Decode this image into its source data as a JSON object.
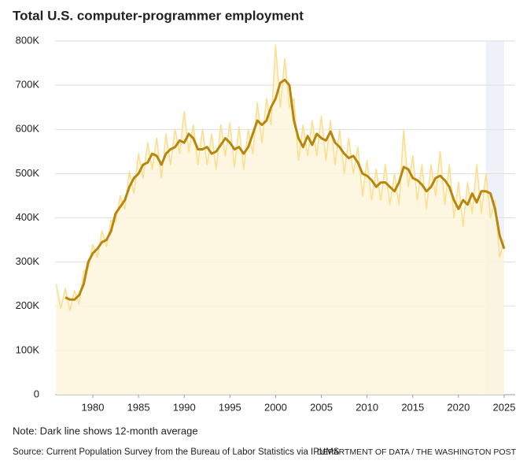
{
  "chart_data": {
    "type": "line",
    "title": "Total U.S. computer-programmer employment",
    "note": "Note: Dark line shows 12-month average",
    "source": "Source: Current Population Survey from the Bureau of Labor Statistics via IPUMS",
    "credit": "DEPARTMENT OF DATA / THE WASHINGTON POST",
    "xlim": [
      1976,
      2025
    ],
    "xticks": [
      1980,
      1985,
      1990,
      1995,
      2000,
      2005,
      2010,
      2015,
      2020,
      2025
    ],
    "ylim": [
      0,
      800000
    ],
    "yticks": [
      0,
      {
        "value": 100000,
        "label": "100K"
      },
      {
        "value": 200000,
        "label": "200K"
      },
      {
        "value": 300000,
        "label": "300K"
      },
      {
        "value": 400000,
        "label": "400K"
      },
      {
        "value": 500000,
        "label": "500K"
      },
      {
        "value": 600000,
        "label": "600K"
      },
      {
        "value": 700000,
        "label": "700K"
      },
      {
        "value": 800000,
        "label": "800K"
      }
    ],
    "grid": true,
    "highlight": [
      2023,
      2025
    ],
    "series": [
      {
        "color": "#fbdf8f",
        "area_color": "#fdf5dc",
        "x": [
          1976,
          1976.5,
          1977,
          1977.5,
          1978,
          1978.5,
          1979,
          1979.5,
          1980,
          1980.5,
          1981,
          1981.5,
          1982,
          1982.5,
          1983,
          1983.5,
          1984,
          1984.5,
          1985,
          1985.5,
          1986,
          1986.5,
          1987,
          1987.5,
          1988,
          1988.5,
          1989,
          1989.5,
          1990,
          1990.5,
          1991,
          1991.5,
          1992,
          1992.5,
          1993,
          1993.5,
          1994,
          1994.5,
          1995,
          1995.5,
          1996,
          1996.5,
          1997,
          1997.5,
          1998,
          1998.5,
          1999,
          1999.5,
          2000,
          2000.5,
          2001,
          2001.5,
          2002,
          2002.5,
          2003,
          2003.5,
          2004,
          2004.5,
          2005,
          2005.5,
          2006,
          2006.5,
          2007,
          2007.5,
          2008,
          2008.5,
          2009,
          2009.5,
          2010,
          2010.5,
          2011,
          2011.5,
          2012,
          2012.5,
          2013,
          2013.5,
          2014,
          2014.5,
          2015,
          2015.5,
          2016,
          2016.5,
          2017,
          2017.5,
          2018,
          2018.5,
          2019,
          2019.5,
          2020,
          2020.5,
          2021,
          2021.5,
          2022,
          2022.5,
          2023,
          2023.5,
          2024,
          2024.5,
          2025
        ],
        "values": [
          250000,
          195000,
          240000,
          190000,
          235000,
          205000,
          280000,
          285000,
          340000,
          310000,
          370000,
          335000,
          395000,
          390000,
          450000,
          420000,
          505000,
          455000,
          545000,
          490000,
          570000,
          510000,
          580000,
          490000,
          590000,
          520000,
          600000,
          545000,
          640000,
          550000,
          610000,
          520000,
          600000,
          520000,
          590000,
          510000,
          610000,
          540000,
          615000,
          515000,
          605000,
          510000,
          600000,
          545000,
          660000,
          570000,
          670000,
          610000,
          790000,
          650000,
          760000,
          650000,
          670000,
          530000,
          610000,
          540000,
          620000,
          540000,
          630000,
          530000,
          620000,
          520000,
          600000,
          500000,
          580000,
          500000,
          560000,
          450000,
          530000,
          440000,
          510000,
          440000,
          520000,
          430000,
          500000,
          430000,
          600000,
          470000,
          540000,
          440000,
          520000,
          420000,
          520000,
          450000,
          550000,
          430000,
          520000,
          400000,
          480000,
          380000,
          480000,
          410000,
          520000,
          410000,
          500000,
          400000,
          440000,
          310000,
          350000
        ]
      },
      {
        "color": "#b8860b",
        "x": [
          1977,
          1977.5,
          1978,
          1978.5,
          1979,
          1979.5,
          1980,
          1980.5,
          1981,
          1981.5,
          1982,
          1982.5,
          1983,
          1983.5,
          1984,
          1984.5,
          1985,
          1985.5,
          1986,
          1986.5,
          1987,
          1987.5,
          1988,
          1988.5,
          1989,
          1989.5,
          1990,
          1990.5,
          1991,
          1991.5,
          1992,
          1992.5,
          1993,
          1993.5,
          1994,
          1994.5,
          1995,
          1995.5,
          1996,
          1996.5,
          1997,
          1997.5,
          1998,
          1998.5,
          1999,
          1999.5,
          2000,
          2000.5,
          2001,
          2001.5,
          2002,
          2002.5,
          2003,
          2003.5,
          2004,
          2004.5,
          2005,
          2005.5,
          2006,
          2006.5,
          2007,
          2007.5,
          2008,
          2008.5,
          2009,
          2009.5,
          2010,
          2010.5,
          2011,
          2011.5,
          2012,
          2012.5,
          2013,
          2013.5,
          2014,
          2014.5,
          2015,
          2015.5,
          2016,
          2016.5,
          2017,
          2017.5,
          2018,
          2018.5,
          2019,
          2019.5,
          2020,
          2020.5,
          2021,
          2021.5,
          2022,
          2022.5,
          2023,
          2023.5,
          2024,
          2024.5,
          2025
        ],
        "values": [
          220000,
          215000,
          215000,
          225000,
          250000,
          300000,
          320000,
          330000,
          345000,
          350000,
          370000,
          410000,
          425000,
          440000,
          470000,
          490000,
          500000,
          520000,
          525000,
          545000,
          540000,
          520000,
          545000,
          555000,
          560000,
          575000,
          570000,
          590000,
          580000,
          555000,
          555000,
          560000,
          545000,
          550000,
          565000,
          580000,
          570000,
          555000,
          560000,
          545000,
          560000,
          590000,
          620000,
          610000,
          620000,
          650000,
          670000,
          705000,
          712000,
          700000,
          620000,
          580000,
          560000,
          585000,
          565000,
          590000,
          580000,
          575000,
          595000,
          570000,
          560000,
          545000,
          535000,
          540000,
          525000,
          500000,
          495000,
          485000,
          470000,
          480000,
          480000,
          470000,
          460000,
          480000,
          515000,
          510000,
          490000,
          485000,
          475000,
          460000,
          470000,
          490000,
          495000,
          485000,
          470000,
          440000,
          420000,
          440000,
          430000,
          455000,
          435000,
          460000,
          460000,
          455000,
          420000,
          360000,
          330000
        ]
      }
    ]
  }
}
